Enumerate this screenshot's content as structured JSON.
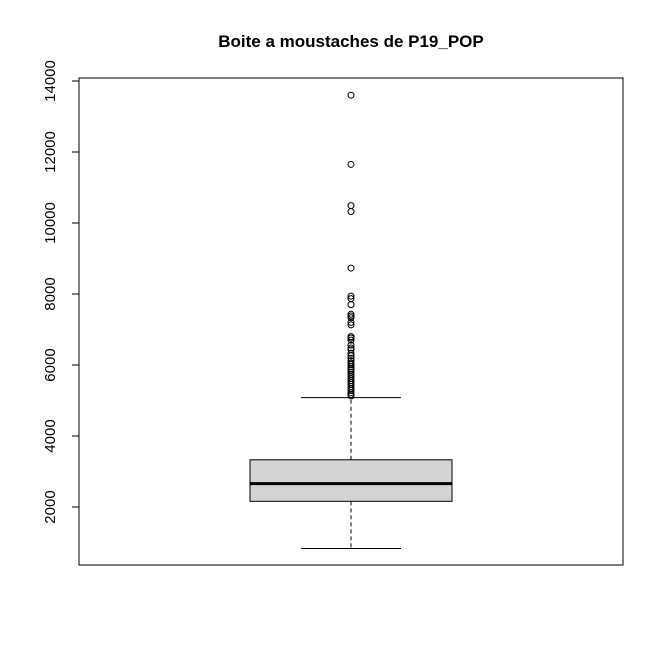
{
  "chart_data": {
    "type": "box",
    "title": "Boite a moustaches de P19_POP",
    "xlabel": "",
    "ylabel": "",
    "ylim": [
      400,
      14200
    ],
    "y_ticks": [
      2000,
      4000,
      6000,
      8000,
      10000,
      12000,
      14000
    ],
    "grid": false,
    "legend": "none",
    "colors": {
      "box_fill": "#d3d3d3",
      "stroke": "#000000"
    },
    "box": {
      "min_whisker": 830,
      "q1": 2160,
      "median": 2660,
      "q3": 3330,
      "max_whisker": 5080
    },
    "outliers": [
      13600,
      11650,
      10490,
      10320,
      8730,
      7940,
      7870,
      7700,
      7430,
      7380,
      7330,
      7200,
      7130,
      6800,
      6760,
      6700,
      6560,
      6480,
      6430,
      6330,
      6260,
      6190,
      6120,
      6060,
      6010,
      5950,
      5900,
      5860,
      5800,
      5740,
      5680,
      5620,
      5560,
      5500,
      5450,
      5390,
      5330,
      5280,
      5220,
      5170,
      5130
    ]
  }
}
